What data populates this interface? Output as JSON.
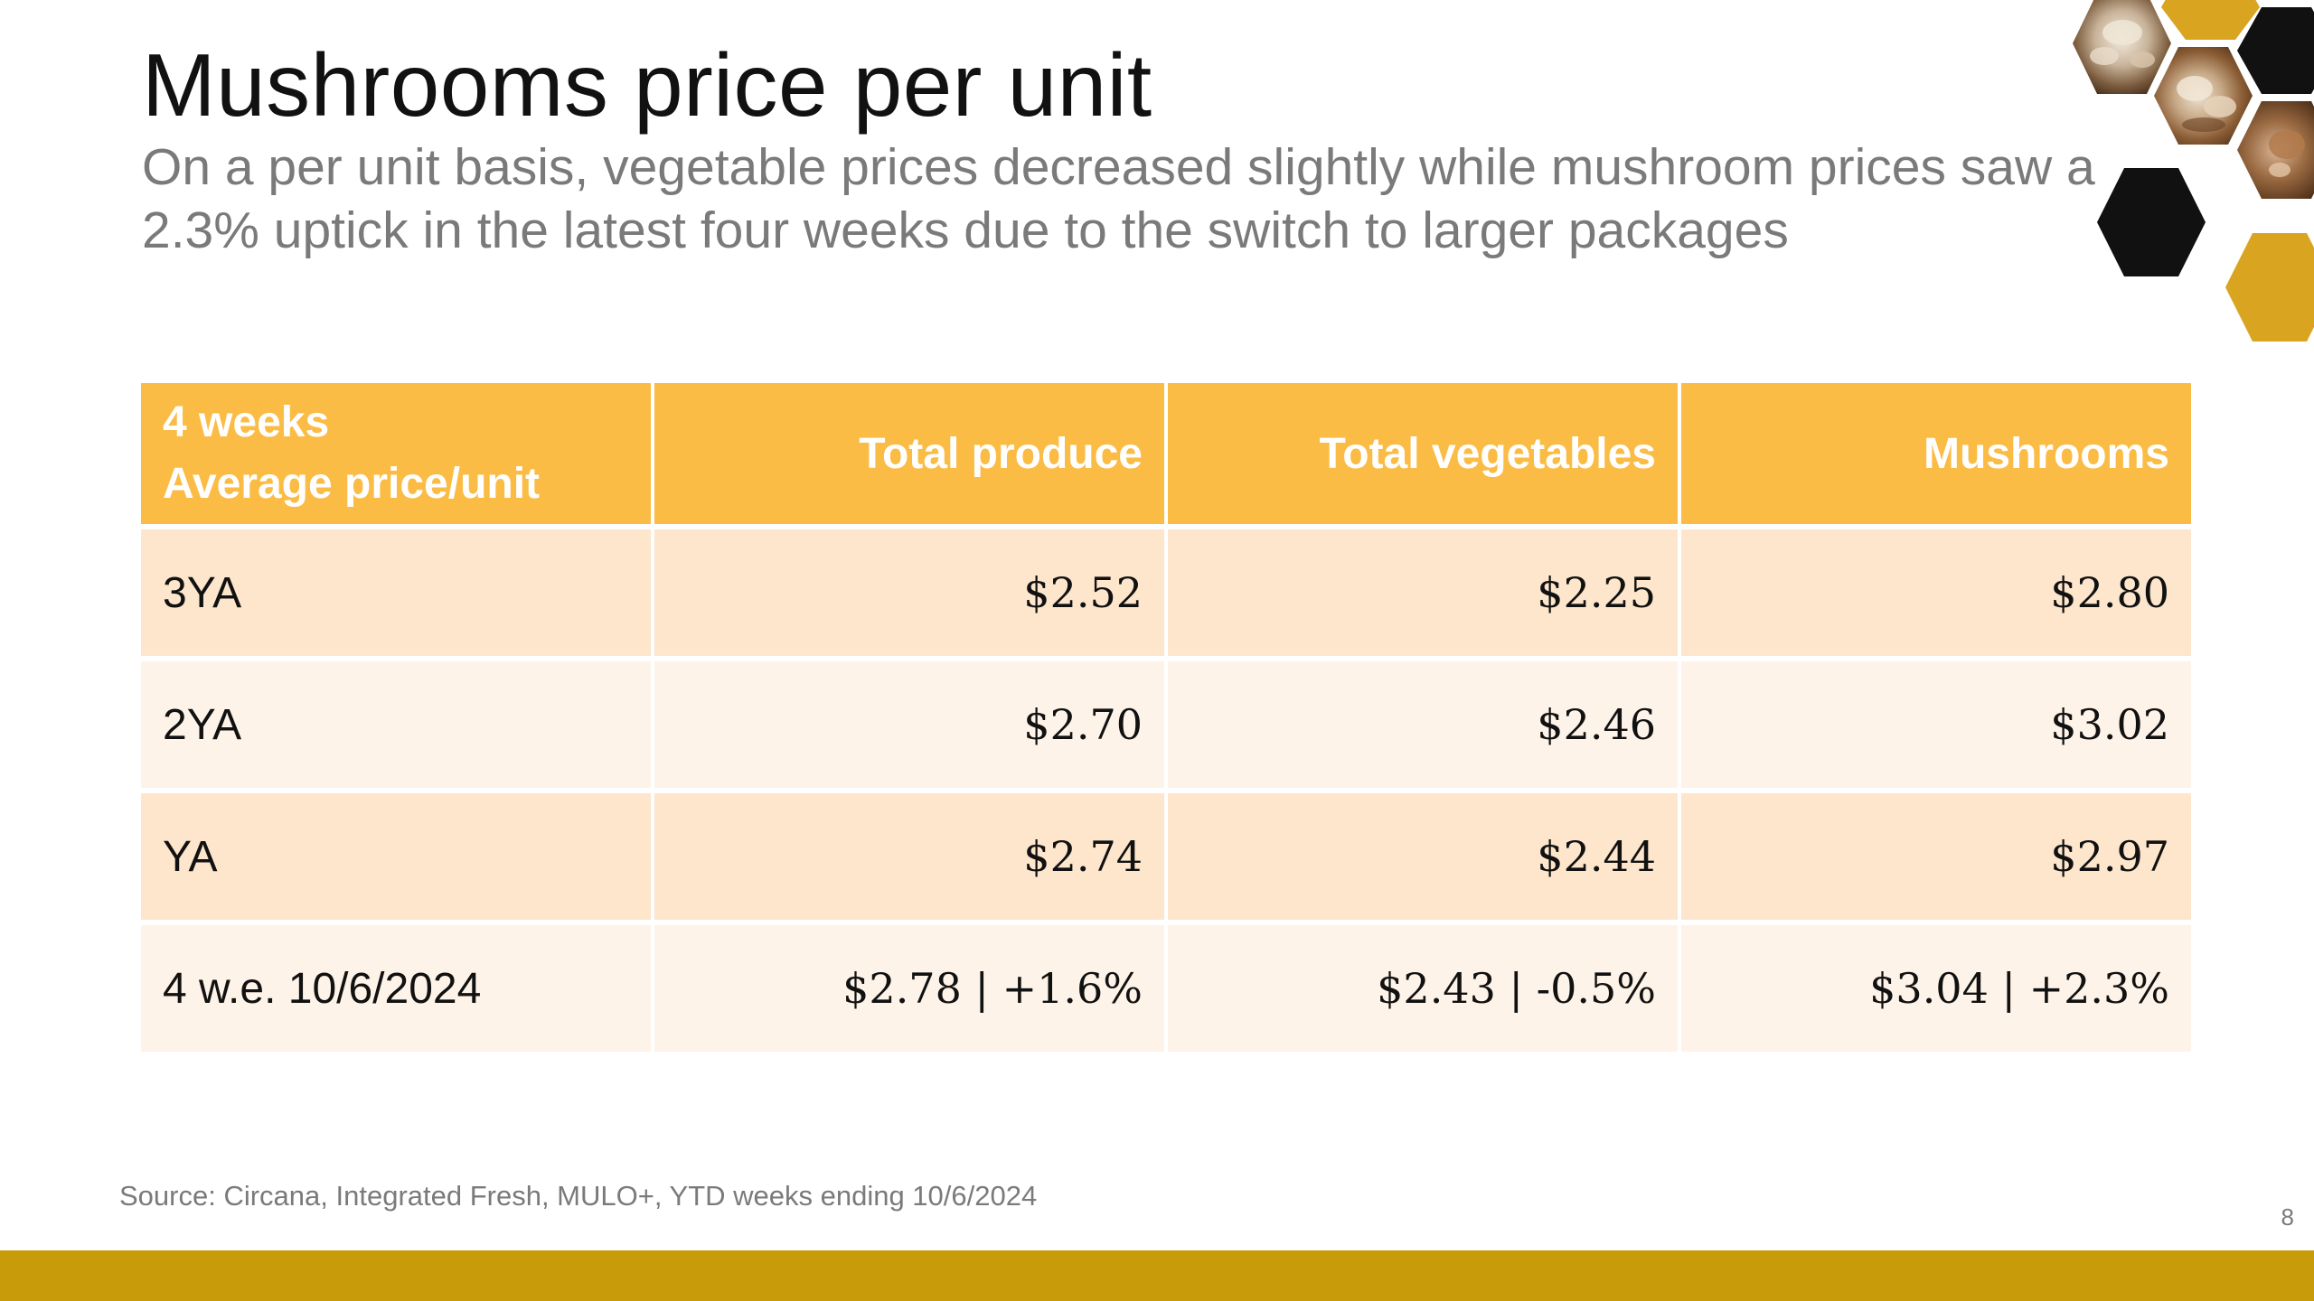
{
  "slide": {
    "title": "Mushrooms price per unit",
    "subtitle": "On a per unit basis, vegetable prices decreased slightly while mushroom prices saw a 2.3% uptick in the latest four weeks due to the switch to larger packages",
    "source": "Source: Circana, Integrated Fresh, MULO+, YTD weeks ending 10/6/2024",
    "page_number": "8"
  },
  "table": {
    "header": {
      "col0_line1": "4 weeks",
      "col0_line2": "Average price/unit",
      "col1": "Total produce",
      "col2": "Total vegetables",
      "col3": "Mushrooms"
    },
    "rows": [
      {
        "period": "3YA",
        "total_produce": "$2.52",
        "total_vegetables": "$2.25",
        "mushrooms": "$2.80"
      },
      {
        "period": "2YA",
        "total_produce": "$2.70",
        "total_vegetables": "$2.46",
        "mushrooms": "$3.02"
      },
      {
        "period": "YA",
        "total_produce": "$2.74",
        "total_vegetables": "$2.44",
        "mushrooms": "$2.97"
      },
      {
        "period": "4 w.e. 10/6/2024",
        "total_produce": "$2.78 | +1.6%",
        "total_vegetables": "$2.43 | -0.5%",
        "mushrooms": "$3.04 | +2.3%"
      }
    ]
  },
  "colors": {
    "header_fill": "#fbbc45",
    "row_odd": "#fde6cc",
    "row_even": "#fef3e8",
    "footer_bar": "#c89b0a",
    "hex_gold": "#d9a520",
    "hex_black": "#111111"
  },
  "decoration": {
    "image_names": [
      "mushroom-photo-hexagon",
      "gold-hexagon",
      "black-hexagon"
    ]
  }
}
